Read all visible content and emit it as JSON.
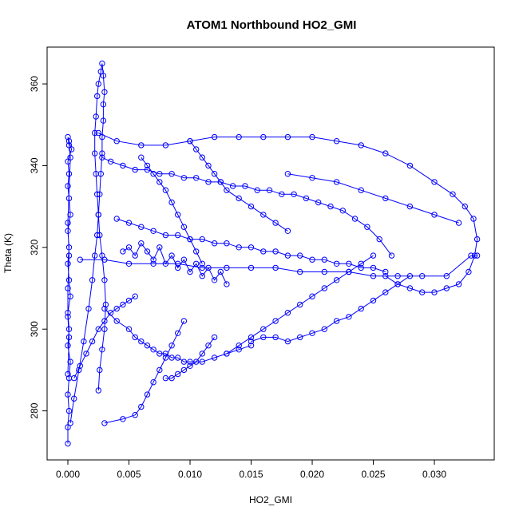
{
  "chart_data": {
    "type": "scatter",
    "title": "ATOM1 Northbound HO2_GMI",
    "xlabel": "HO2_GMI",
    "ylabel": "Theta (K)",
    "xlim": [
      -0.0017,
      0.0349
    ],
    "ylim": [
      268,
      369
    ],
    "xticks": [
      0.0,
      0.005,
      0.01,
      0.015,
      0.02,
      0.025,
      0.03
    ],
    "xtick_labels": [
      "0.000",
      "0.005",
      "0.010",
      "0.015",
      "0.020",
      "0.025",
      "0.030"
    ],
    "yticks": [
      280,
      300,
      320,
      340,
      360
    ],
    "ytick_labels": [
      "280",
      "300",
      "320",
      "340",
      "360"
    ],
    "grid": false,
    "legend": "none",
    "marker": "open-circle",
    "connected": true,
    "color": "#0000ff",
    "series": [
      {
        "x": [
          0.0,
          0.0,
          0.0001,
          0.0,
          0.0001,
          0.0002,
          0.0,
          0.0001,
          0.0,
          0.0002,
          0.0001,
          0.0,
          0.0001,
          0.0,
          0.0002,
          0.0001,
          0.0,
          0.0001,
          0.0,
          0.0003,
          0.0001,
          0.0,
          0.0001,
          0.0002,
          0.0,
          0.0001,
          0.0,
          0.0,
          0.0001,
          0.0
        ],
        "y": [
          272,
          276,
          280,
          284,
          288,
          292,
          296,
          300,
          304,
          308,
          312,
          316,
          320,
          324,
          328,
          332,
          335,
          338,
          341,
          344,
          346,
          347,
          345,
          342,
          326,
          318,
          310,
          303,
          298,
          289
        ]
      },
      {
        "x": [
          0.0002,
          0.0005,
          0.0009,
          0.0013,
          0.0017,
          0.002,
          0.0022,
          0.0024,
          0.0025,
          0.0026,
          0.0027,
          0.0028,
          0.0028,
          0.0029,
          0.0029,
          0.003,
          0.0029,
          0.0028,
          0.0027,
          0.0025,
          0.0024,
          0.0023,
          0.0022,
          0.0022,
          0.0023,
          0.0024,
          0.0025,
          0.0026,
          0.0028,
          0.003,
          0.0031,
          0.003,
          0.0028,
          0.0026,
          0.0025
        ],
        "y": [
          277,
          283,
          290,
          297,
          305,
          312,
          318,
          323,
          328,
          333,
          338,
          343,
          347,
          351,
          355,
          358,
          362,
          365,
          363,
          360,
          357,
          352,
          348,
          343,
          338,
          333,
          328,
          323,
          318,
          312,
          306,
          300,
          295,
          290,
          285
        ]
      },
      {
        "x": [
          0.0025,
          0.004,
          0.006,
          0.008,
          0.01,
          0.012,
          0.014,
          0.016,
          0.018,
          0.02,
          0.022,
          0.024,
          0.026,
          0.028,
          0.03,
          0.0315,
          0.0325,
          0.0332,
          0.0335,
          0.0333,
          0.0328,
          0.032,
          0.031,
          0.03,
          0.029,
          0.028,
          0.027,
          0.026
        ],
        "y": [
          348,
          346,
          345,
          345,
          346,
          347,
          347,
          347,
          347,
          347,
          346,
          345,
          343,
          340,
          336,
          333,
          330,
          327,
          322,
          318,
          314,
          311,
          310,
          309,
          309,
          310,
          311,
          313
        ]
      },
      {
        "x": [
          0.0028,
          0.0035,
          0.0045,
          0.0055,
          0.0065,
          0.0075,
          0.0085,
          0.0095,
          0.0105,
          0.0115,
          0.0125,
          0.0135,
          0.0145,
          0.0155,
          0.0165,
          0.0175,
          0.0185,
          0.0195,
          0.0205,
          0.0215,
          0.0225,
          0.0235,
          0.0245,
          0.0255,
          0.0265
        ],
        "y": [
          342,
          341,
          340,
          339,
          339,
          338,
          338,
          337,
          337,
          336,
          336,
          335,
          335,
          334,
          334,
          333,
          333,
          332,
          331,
          330,
          329,
          327,
          325,
          322,
          318
        ]
      },
      {
        "x": [
          0.004,
          0.005,
          0.006,
          0.007,
          0.008,
          0.009,
          0.01,
          0.011,
          0.012,
          0.013,
          0.014,
          0.015,
          0.016,
          0.017,
          0.018,
          0.019,
          0.02,
          0.021,
          0.022,
          0.023,
          0.024,
          0.025,
          0.026
        ],
        "y": [
          327,
          326,
          325,
          324,
          323,
          323,
          322,
          322,
          321,
          321,
          320,
          320,
          319,
          319,
          318,
          318,
          317,
          317,
          316,
          316,
          315,
          315,
          314
        ]
      },
      {
        "x": [
          0.001,
          0.003,
          0.005,
          0.007,
          0.009,
          0.011,
          0.013,
          0.015,
          0.017,
          0.019,
          0.021,
          0.023,
          0.025,
          0.027,
          0.029,
          0.031,
          0.033,
          0.0335
        ],
        "y": [
          317,
          317,
          316,
          316,
          316,
          315,
          315,
          315,
          315,
          314,
          314,
          314,
          313,
          313,
          313,
          313,
          318,
          318
        ]
      },
      {
        "x": [
          0.0045,
          0.005,
          0.0055,
          0.006,
          0.0065,
          0.007,
          0.0075,
          0.008,
          0.0085,
          0.009,
          0.0095,
          0.01,
          0.0105,
          0.011,
          0.0115,
          0.012,
          0.0125,
          0.013
        ],
        "y": [
          319,
          320,
          318,
          321,
          319,
          317,
          320,
          316,
          318,
          315,
          317,
          314,
          316,
          313,
          315,
          312,
          314,
          311
        ]
      },
      {
        "x": [
          0.003,
          0.004,
          0.005,
          0.0055,
          0.006,
          0.0065,
          0.007,
          0.0075,
          0.008,
          0.0085,
          0.009,
          0.0095,
          0.01,
          0.011,
          0.012,
          0.013,
          0.014,
          0.015
        ],
        "y": [
          305,
          302,
          300,
          298,
          297,
          296,
          295,
          294,
          294,
          293,
          293,
          292,
          292,
          292,
          293,
          294,
          295,
          296
        ]
      },
      {
        "x": [
          0.015,
          0.016,
          0.017,
          0.018,
          0.019,
          0.02,
          0.021,
          0.022,
          0.023,
          0.024,
          0.025,
          0.026,
          0.027,
          0.028
        ],
        "y": [
          297,
          298,
          298,
          297,
          298,
          299,
          300,
          302,
          303,
          305,
          307,
          309,
          311,
          313
        ]
      },
      {
        "x": [
          0.013,
          0.014,
          0.015,
          0.016,
          0.017,
          0.018,
          0.019,
          0.02,
          0.021,
          0.022,
          0.023,
          0.024,
          0.025
        ],
        "y": [
          294,
          296,
          298,
          300,
          302,
          304,
          306,
          308,
          310,
          312,
          314,
          316,
          318
        ]
      },
      {
        "x": [
          0.003,
          0.0045,
          0.0055,
          0.006,
          0.0065,
          0.007,
          0.0075,
          0.008,
          0.0085,
          0.009,
          0.0095
        ],
        "y": [
          277,
          278,
          279,
          281,
          284,
          287,
          290,
          293,
          296,
          299,
          302
        ]
      },
      {
        "x": [
          0.0005,
          0.001,
          0.0015,
          0.002,
          0.0025,
          0.003,
          0.0035,
          0.004,
          0.0045,
          0.005,
          0.0055
        ],
        "y": [
          288,
          291,
          294,
          297,
          300,
          302,
          304,
          305,
          306,
          307,
          308
        ]
      },
      {
        "x": [
          0.01,
          0.0105,
          0.011,
          0.0115,
          0.012,
          0.0125,
          0.013,
          0.014,
          0.015,
          0.016,
          0.017,
          0.018
        ],
        "y": [
          346,
          344,
          342,
          340,
          338,
          336,
          334,
          332,
          330,
          328,
          326,
          324
        ]
      },
      {
        "x": [
          0.006,
          0.0065,
          0.007,
          0.0075,
          0.008,
          0.0085,
          0.009,
          0.0095,
          0.01,
          0.0105,
          0.011
        ],
        "y": [
          342,
          340,
          338,
          336,
          334,
          331,
          328,
          325,
          322,
          319,
          316
        ]
      },
      {
        "x": [
          0.018,
          0.02,
          0.022,
          0.024,
          0.026,
          0.028,
          0.03,
          0.032
        ],
        "y": [
          338,
          337,
          336,
          334,
          332,
          330,
          328,
          326
        ]
      },
      {
        "x": [
          0.008,
          0.0085,
          0.009,
          0.0095,
          0.01,
          0.0105,
          0.011,
          0.0115,
          0.012
        ],
        "y": [
          288,
          288,
          289,
          290,
          291,
          292,
          294,
          296,
          298
        ]
      }
    ]
  }
}
